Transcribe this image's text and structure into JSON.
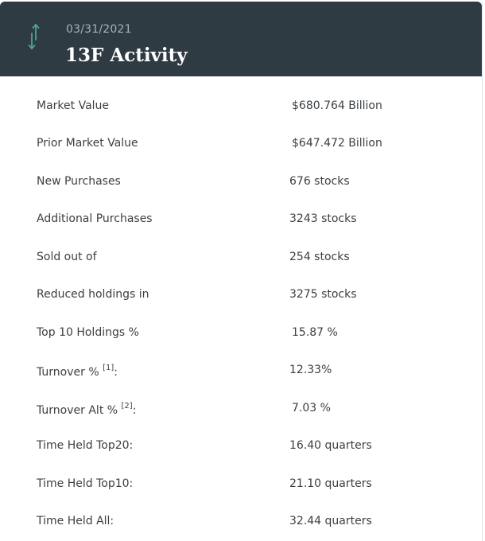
{
  "header": {
    "date": "03/31/2021",
    "title": "13F Activity",
    "icon": "up-down-arrows-icon"
  },
  "rows": [
    {
      "label": "Market Value",
      "value": "$680.764 Billion"
    },
    {
      "label": "Prior Market Value",
      "value": "$647.472 Billion"
    },
    {
      "label": "New Purchases",
      "value": "676 stocks"
    },
    {
      "label": "Additional Purchases",
      "value": "3243 stocks"
    },
    {
      "label": "Sold out of",
      "value": "254 stocks"
    },
    {
      "label": "Reduced holdings in",
      "value": "3275 stocks"
    },
    {
      "label": "Top 10 Holdings %",
      "value": "15.87 %"
    },
    {
      "label": "Turnover %",
      "footnote": "[1]",
      "suffix": ":",
      "value": "12.33%"
    },
    {
      "label": "Turnover Alt %",
      "footnote": "[2]",
      "suffix": ":",
      "value": "7.03 %"
    },
    {
      "label": "Time Held Top20:",
      "value": "16.40 quarters"
    },
    {
      "label": "Time Held Top10:",
      "value": "21.10 quarters"
    },
    {
      "label": "Time Held All:",
      "value": "32.44 quarters"
    }
  ],
  "colors": {
    "header_bg": "#2f3b43",
    "icon_color": "#4ea38e"
  }
}
